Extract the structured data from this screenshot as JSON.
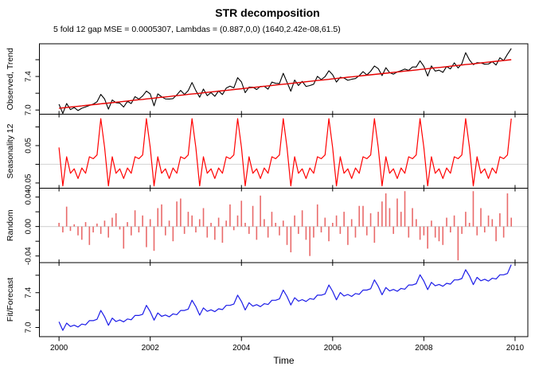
{
  "chart_data": {
    "type": "line",
    "title": "STR decomposition",
    "subtitle": "5 fold 12 gap MSE = 0.0005307, Lambdas = (0.887,0,0) (1640,2.42e-08,61.5)",
    "xlabel": "Time",
    "x_domain": [
      1999.57,
      2010.28
    ],
    "x_ticks": [
      {
        "v": 2000,
        "label": "2000"
      },
      {
        "v": 2002,
        "label": "2002"
      },
      {
        "v": 2004,
        "label": "2004"
      },
      {
        "v": 2006,
        "label": "2006"
      },
      {
        "v": 2008,
        "label": "2008"
      },
      {
        "v": 2010,
        "label": "2010"
      }
    ],
    "months_per_year": 12,
    "start_year": 2000,
    "n_points": 120,
    "colors": {
      "observed": "#000000",
      "trend": "#e60000",
      "seasonal": "#ff0000",
      "random": "#e96a6a",
      "fit": "#1c1ce8",
      "zero_line": "#d8d8d8",
      "box": "#000000"
    },
    "panels": [
      {
        "id": "observed-trend",
        "ylabel": "Observed, Trend",
        "ylim": [
          6.95,
          7.79
        ],
        "style": "line",
        "zero_line": false,
        "series": [
          {
            "key": "observed",
            "color_key": "observed",
            "width": 1.1
          },
          {
            "key": "trend",
            "color_key": "trend",
            "width": 1.4
          }
        ],
        "yticks": [
          {
            "v": 7.0,
            "label": "7.0"
          },
          {
            "v": 7.2,
            "label": null
          },
          {
            "v": 7.4,
            "label": "7.4"
          },
          {
            "v": 7.6,
            "label": null
          }
        ]
      },
      {
        "id": "seasonality-12",
        "ylabel": "Seasonality 12",
        "ylim": [
          -0.064,
          0.134
        ],
        "style": "line",
        "zero_line": true,
        "series": [
          {
            "key": "seasonal",
            "color_key": "seasonal",
            "width": 1.2
          }
        ],
        "yticks": [
          {
            "v": 0.1,
            "label": null
          },
          {
            "v": 0.05,
            "label": "0.05"
          },
          {
            "v": 0.0,
            "label": null
          },
          {
            "v": -0.05,
            "label": "-0.05"
          }
        ]
      },
      {
        "id": "random",
        "ylabel": "Random",
        "ylim": [
          -0.049,
          0.052
        ],
        "style": "bars",
        "zero_line": true,
        "series": [
          {
            "key": "random",
            "color_key": "random",
            "width": 1.6
          }
        ],
        "yticks": [
          {
            "v": 0.04,
            "label": "0.04"
          },
          {
            "v": 0.02,
            "label": null
          },
          {
            "v": 0.0,
            "label": "0.00"
          },
          {
            "v": -0.02,
            "label": null
          },
          {
            "v": -0.04,
            "label": "-0.04"
          }
        ]
      },
      {
        "id": "fit-forecast",
        "ylabel": "Fit/Forecast",
        "ylim": [
          6.895,
          7.745
        ],
        "style": "line",
        "zero_line": false,
        "series": [
          {
            "key": "fit",
            "color_key": "fit",
            "width": 1.2
          }
        ],
        "yticks": [
          {
            "v": 7.0,
            "label": "7.0"
          },
          {
            "v": 7.2,
            "label": null
          },
          {
            "v": 7.4,
            "label": "7.4"
          },
          {
            "v": 7.6,
            "label": null
          }
        ]
      }
    ],
    "layout": {
      "plot_left": 49.5,
      "plot_right": 663,
      "panel_bounds": [
        55,
        143.5,
        236.5,
        330,
        423
      ],
      "ytick_len": 5,
      "xtick_len": 5.5,
      "inner_tick_half": 4
    },
    "series_data": {
      "trend": [
        7.02,
        7.025,
        7.03,
        7.035,
        7.039,
        7.044,
        7.049,
        7.054,
        7.059,
        7.064,
        7.069,
        7.074,
        7.078,
        7.083,
        7.088,
        7.093,
        7.098,
        7.103,
        7.108,
        7.113,
        7.118,
        7.123,
        7.127,
        7.132,
        7.137,
        7.142,
        7.147,
        7.152,
        7.156,
        7.161,
        7.166,
        7.171,
        7.176,
        7.181,
        7.186,
        7.191,
        7.195,
        7.2,
        7.205,
        7.21,
        7.215,
        7.22,
        7.225,
        7.23,
        7.234,
        7.239,
        7.244,
        7.249,
        7.254,
        7.259,
        7.264,
        7.269,
        7.274,
        7.278,
        7.283,
        7.288,
        7.293,
        7.298,
        7.303,
        7.308,
        7.312,
        7.317,
        7.322,
        7.327,
        7.332,
        7.337,
        7.342,
        7.347,
        7.352,
        7.356,
        7.361,
        7.366,
        7.371,
        7.376,
        7.381,
        7.386,
        7.391,
        7.395,
        7.4,
        7.405,
        7.41,
        7.415,
        7.42,
        7.425,
        7.429,
        7.434,
        7.439,
        7.444,
        7.449,
        7.454,
        7.459,
        7.464,
        7.468,
        7.473,
        7.478,
        7.483,
        7.488,
        7.493,
        7.498,
        7.503,
        7.507,
        7.512,
        7.517,
        7.522,
        7.527,
        7.532,
        7.537,
        7.542,
        7.546,
        7.551,
        7.556,
        7.561,
        7.566,
        7.571,
        7.576,
        7.581,
        7.585,
        7.59,
        7.595,
        7.6
      ],
      "seasonal_pattern": [
        0.045,
        -0.058,
        0.02,
        -0.024,
        -0.012,
        -0.038,
        -0.01,
        -0.024,
        0.02,
        0.015,
        0.025,
        0.122
      ],
      "random_x1000": [
        5,
        -8,
        27,
        -6,
        3,
        -12,
        -18,
        6,
        -25,
        -8,
        4,
        -10,
        8,
        -15,
        12,
        18,
        -4,
        -30,
        6,
        -12,
        22,
        -8,
        15,
        -28,
        10,
        -33,
        25,
        30,
        -12,
        8,
        -20,
        34,
        38,
        -10,
        20,
        15,
        -8,
        10,
        25,
        -15,
        5,
        -18,
        12,
        -22,
        8,
        30,
        -5,
        15,
        35,
        5,
        -10,
        28,
        -18,
        42,
        10,
        -15,
        20,
        5,
        -12,
        8,
        -25,
        -35,
        15,
        -10,
        22,
        -18,
        -40,
        -15,
        30,
        -8,
        12,
        -20,
        5,
        15,
        -10,
        20,
        -25,
        10,
        -15,
        28,
        28,
        -12,
        18,
        -22,
        20,
        34,
        45,
        25,
        -10,
        38,
        20,
        48,
        -15,
        25,
        10,
        -18,
        -12,
        -30,
        8,
        -15,
        -20,
        -25,
        12,
        -8,
        15,
        -46,
        -10,
        20,
        5,
        48,
        -12,
        25,
        -8,
        15,
        10,
        -20,
        18,
        -15,
        45,
        12
      ],
      "derived": {
        "seasonal": "seasonal_pattern tiled across 120 months",
        "observed": "trend + seasonal + random",
        "fit": "trend + seasonal"
      }
    }
  }
}
